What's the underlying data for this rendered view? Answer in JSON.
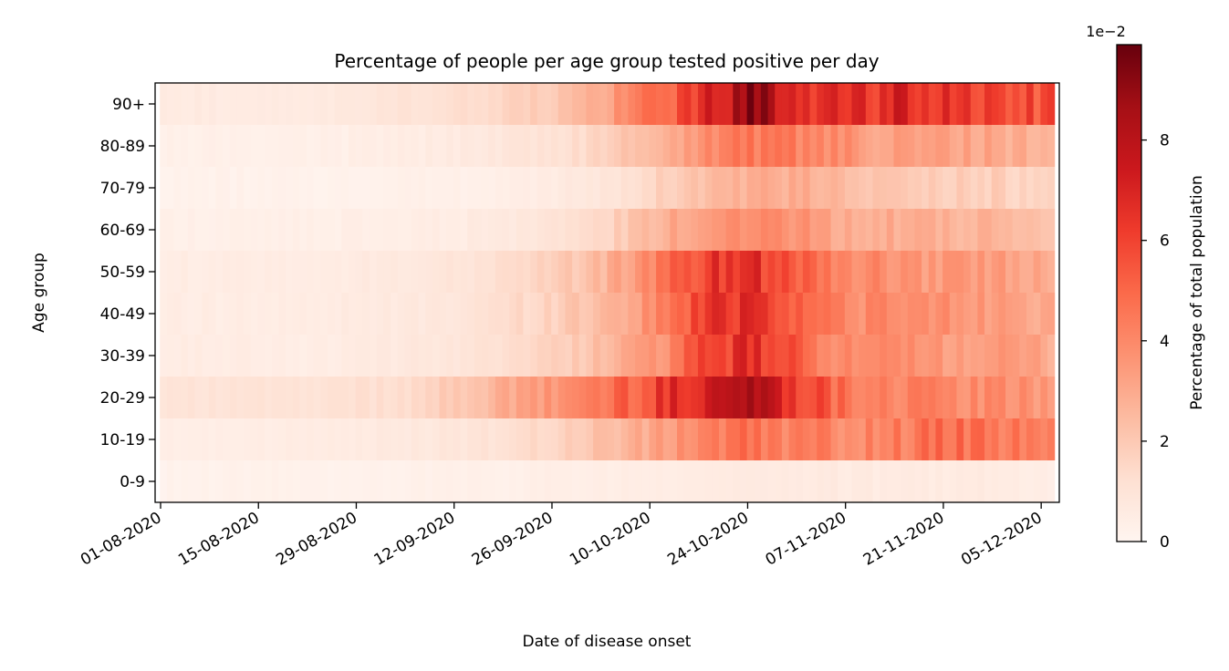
{
  "chart_data": {
    "type": "heatmap",
    "title": "Percentage of people per age group tested positive per day",
    "xlabel": "Date of disease onset",
    "ylabel": "Age group",
    "x_tick_labels": [
      "01-08-2020",
      "15-08-2020",
      "29-08-2020",
      "12-09-2020",
      "26-09-2020",
      "10-10-2020",
      "24-10-2020",
      "07-11-2020",
      "21-11-2020",
      "05-12-2020"
    ],
    "x_range": [
      "01-08-2020",
      "08-12-2020"
    ],
    "age_groups": [
      "0-9",
      "10-19",
      "20-29",
      "30-39",
      "40-49",
      "50-59",
      "60-69",
      "70-79",
      "80-89",
      "90+"
    ],
    "colormap": "Reds",
    "colorbar": {
      "label": "Percentage of total population",
      "offset_label": "1e−2",
      "ticks": [
        0,
        2,
        4,
        6,
        8
      ],
      "vmin": 0,
      "vmax": 9.9,
      "scale": "1e-2"
    },
    "weekly_values_1e-2": {
      "week_start_dates": [
        "01-08-2020",
        "08-08-2020",
        "15-08-2020",
        "22-08-2020",
        "29-08-2020",
        "05-09-2020",
        "12-09-2020",
        "19-09-2020",
        "26-09-2020",
        "03-10-2020",
        "10-10-2020",
        "17-10-2020",
        "24-10-2020",
        "31-10-2020",
        "07-11-2020",
        "14-11-2020",
        "21-11-2020",
        "28-11-2020",
        "05-12-2020"
      ],
      "0-9": [
        0.2,
        0.2,
        0.2,
        0.2,
        0.2,
        0.2,
        0.3,
        0.3,
        0.4,
        0.5,
        0.5,
        0.6,
        0.7,
        0.6,
        0.6,
        0.6,
        0.6,
        0.6,
        0.5
      ],
      "10-19": [
        0.4,
        0.4,
        0.5,
        0.5,
        0.6,
        0.7,
        0.9,
        1.2,
        1.6,
        2.3,
        3.0,
        4.2,
        4.6,
        4.2,
        4.0,
        4.3,
        4.8,
        4.6,
        4.0
      ],
      "20-29": [
        1.1,
        1.0,
        1.0,
        1.0,
        1.2,
        1.4,
        2.0,
        2.8,
        3.6,
        4.5,
        5.8,
        7.4,
        8.4,
        6.4,
        4.6,
        4.2,
        4.0,
        3.8,
        3.6
      ],
      "30-39": [
        0.5,
        0.5,
        0.5,
        0.5,
        0.6,
        0.7,
        0.9,
        1.3,
        1.7,
        2.4,
        3.4,
        5.5,
        6.6,
        5.0,
        3.8,
        3.6,
        3.5,
        3.4,
        3.0
      ],
      "40-49": [
        0.5,
        0.5,
        0.5,
        0.5,
        0.6,
        0.7,
        0.9,
        1.3,
        1.8,
        2.5,
        3.8,
        6.0,
        7.0,
        5.2,
        4.0,
        3.8,
        3.7,
        3.5,
        3.2
      ],
      "50-59": [
        0.5,
        0.5,
        0.5,
        0.5,
        0.6,
        0.7,
        0.9,
        1.3,
        1.8,
        2.6,
        4.0,
        6.0,
        6.8,
        5.4,
        4.0,
        3.7,
        3.6,
        3.4,
        3.0
      ],
      "60-69": [
        0.3,
        0.3,
        0.3,
        0.3,
        0.4,
        0.4,
        0.5,
        0.7,
        1.0,
        1.5,
        2.5,
        3.5,
        4.2,
        3.6,
        3.0,
        2.8,
        2.7,
        2.6,
        2.2
      ],
      "70-79": [
        0.2,
        0.2,
        0.2,
        0.2,
        0.2,
        0.3,
        0.3,
        0.4,
        0.6,
        0.9,
        1.6,
        2.4,
        2.8,
        2.8,
        2.3,
        2.0,
        1.9,
        1.8,
        1.5
      ],
      "80-89": [
        0.3,
        0.3,
        0.3,
        0.3,
        0.4,
        0.5,
        0.6,
        0.8,
        1.1,
        1.6,
        2.6,
        3.8,
        4.6,
        4.2,
        3.6,
        3.2,
        3.2,
        3.0,
        2.6
      ],
      "90+": [
        0.6,
        0.6,
        0.6,
        0.6,
        0.8,
        1.0,
        1.2,
        1.6,
        2.0,
        3.0,
        4.6,
        6.4,
        8.8,
        7.0,
        6.2,
        6.8,
        6.4,
        6.0,
        5.6
      ]
    }
  }
}
